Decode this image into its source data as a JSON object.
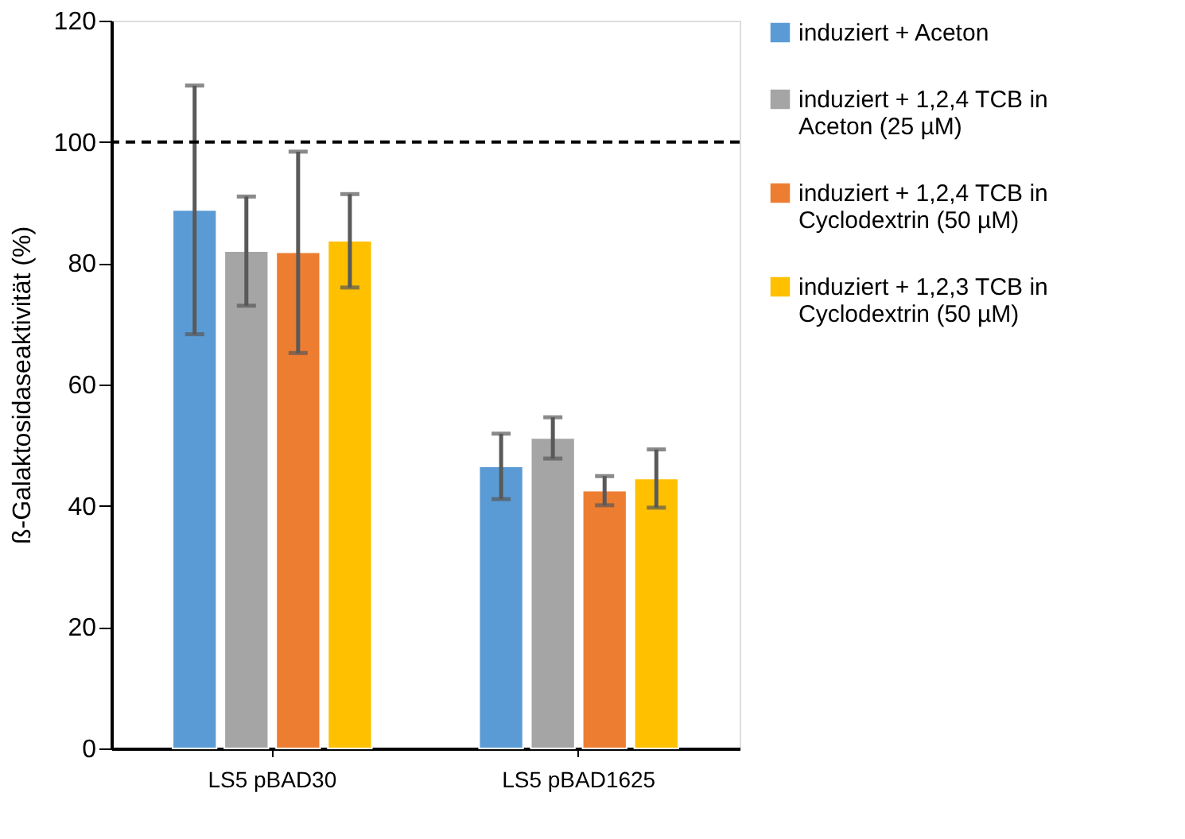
{
  "chart_data": {
    "type": "bar",
    "ylabel": "ß-Galaktosidaseaktivität (%)",
    "categories": [
      "LS5 pBAD30",
      "LS5 pBAD1625"
    ],
    "series": [
      {
        "name": "induziert + Aceton",
        "color": "#5b9bd5",
        "values": [
          88.8,
          46.5
        ],
        "errors": [
          20.5,
          5.4
        ]
      },
      {
        "name": "induziert + 1,2,4 TCB in Aceton (25 µM)",
        "color": "#a5a5a5",
        "values": [
          82.0,
          51.2
        ],
        "errors": [
          9.0,
          3.4
        ]
      },
      {
        "name": "induziert + 1,2,4 TCB in Cyclodextrin (50 µM)",
        "color": "#ed7d31",
        "values": [
          81.8,
          42.5
        ],
        "errors": [
          16.6,
          2.4
        ]
      },
      {
        "name": "induziert + 1,2,3 TCB in Cyclodextrin (50 µM)",
        "color": "#ffc000",
        "values": [
          83.7,
          44.5
        ],
        "errors": [
          7.7,
          4.8
        ]
      }
    ],
    "ylim": [
      0,
      120
    ],
    "yticks": [
      0,
      20,
      40,
      60,
      80,
      100,
      120
    ],
    "ref_lines": [
      {
        "axis": "y",
        "value": 100,
        "color": "#000000",
        "line_style": "dashed"
      }
    ],
    "grid": false,
    "legend": "right"
  }
}
